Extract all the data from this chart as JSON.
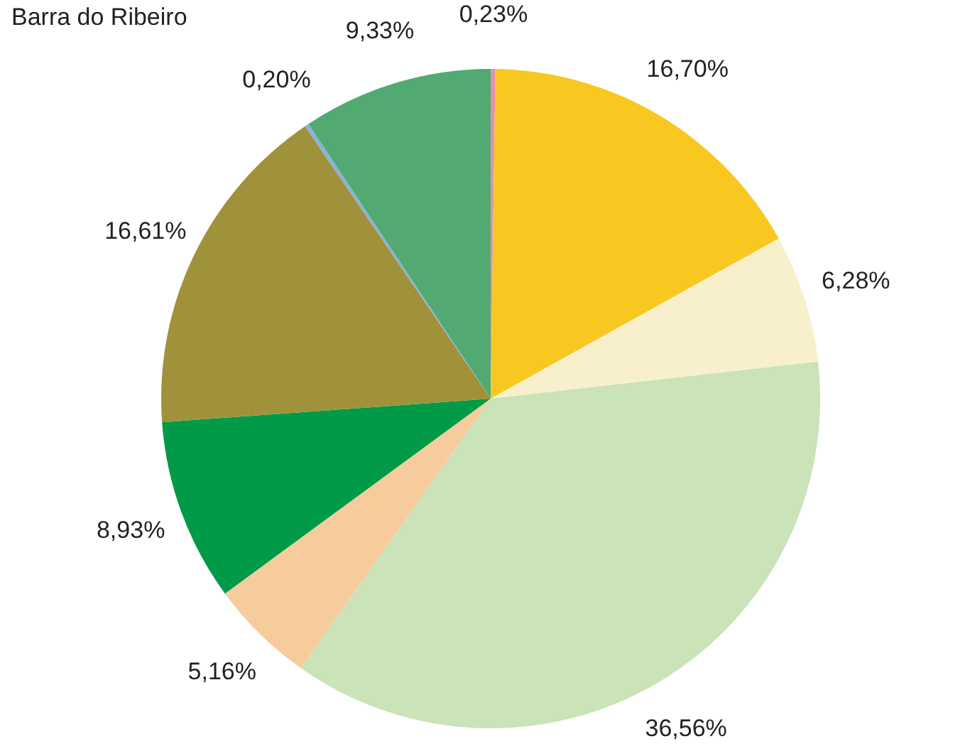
{
  "chart_data": {
    "type": "pie",
    "title": "Barra do Ribeiro",
    "categories": [
      null,
      null,
      null,
      null,
      null,
      null,
      null,
      null,
      null
    ],
    "values": [
      0.23,
      16.7,
      6.28,
      36.56,
      5.16,
      8.93,
      16.61,
      0.2,
      9.33
    ],
    "colors": [
      "#e88fb0",
      "#f8c820",
      "#f8f0cc",
      "#cae3b8",
      "#f6cc9c",
      "#009a48",
      "#a0923a",
      "#8cb0d8",
      "#52aa72"
    ],
    "value_labels": [
      "0,23%",
      "16,70%",
      "6,28%",
      "36,56%",
      "5,16%",
      "8,93%",
      "16,61%",
      "0,20%",
      "9,33%"
    ],
    "legend": false
  }
}
